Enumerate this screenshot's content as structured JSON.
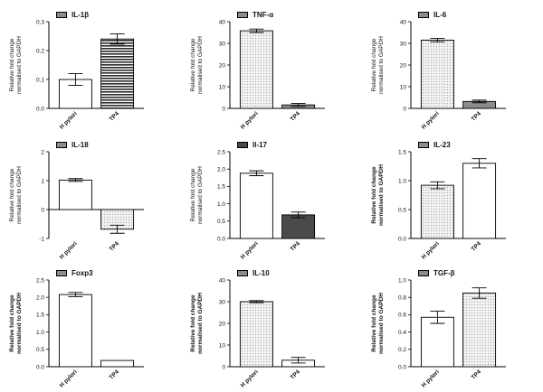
{
  "chart_data": [
    {
      "type": "bar",
      "legend_label": "IL-1β",
      "ylabel_lines": [
        "Relative fold change",
        "normalised to GAPDH"
      ],
      "ylabel_bold": false,
      "categories": [
        "H pylori",
        "TP4"
      ],
      "values": [
        0.1,
        0.24
      ],
      "errors": [
        0.02,
        0.018
      ],
      "ylim": [
        0,
        0.3
      ],
      "yticks": [
        "0.0",
        "0.1",
        "0.2",
        "0.3"
      ],
      "fills": [
        "white",
        "hlines"
      ],
      "legend_fill": "gray"
    },
    {
      "type": "bar",
      "legend_label": "TNF-α",
      "ylabel_lines": [
        "Relative fold change",
        "normalised to GAPDH"
      ],
      "ylabel_bold": false,
      "categories": [
        "H pylori",
        "TP4"
      ],
      "values": [
        35.8,
        1.6
      ],
      "errors": [
        0.8,
        0.7
      ],
      "ylim": [
        0,
        40
      ],
      "yticks": [
        "0",
        "10",
        "20",
        "30",
        "40"
      ],
      "fills": [
        "dots",
        "gray"
      ],
      "legend_fill": "gray"
    },
    {
      "type": "bar",
      "legend_label": "IL-6",
      "ylabel_lines": [
        "Relative fold change",
        "normalised to GAPDH"
      ],
      "ylabel_bold": false,
      "categories": [
        "H pylori",
        "TP4"
      ],
      "values": [
        31.5,
        3.2
      ],
      "errors": [
        0.8,
        0.6
      ],
      "ylim": [
        0,
        40
      ],
      "yticks": [
        "0",
        "10",
        "20",
        "30",
        "40"
      ],
      "fills": [
        "dots",
        "gray"
      ],
      "legend_fill": "gray"
    },
    {
      "type": "bar",
      "legend_label": "IL-18",
      "ylabel_lines": [
        "Relative fold change",
        "normalised to GAPDH"
      ],
      "ylabel_bold": false,
      "categories": [
        "H pylori",
        "TP4"
      ],
      "values": [
        1.02,
        -0.68
      ],
      "errors": [
        0.05,
        0.14
      ],
      "ylim": [
        -1,
        2
      ],
      "yticks": [
        "-1",
        "0",
        "1",
        "2"
      ],
      "fills": [
        "white",
        "dots"
      ],
      "legend_fill": "gray"
    },
    {
      "type": "bar",
      "legend_label": "Il-17",
      "ylabel_lines": [
        "Relative fold change",
        "normalised to GAPDH"
      ],
      "ylabel_bold": false,
      "categories": [
        "H pylori",
        "TP4"
      ],
      "values": [
        1.88,
        0.68
      ],
      "errors": [
        0.07,
        0.08
      ],
      "ylim": [
        0,
        2.5
      ],
      "yticks": [
        "0.0",
        "0.5",
        "1.0",
        "1.5",
        "2.0",
        "2.5"
      ],
      "fills": [
        "white",
        "dark"
      ],
      "legend_fill": "dark"
    },
    {
      "type": "bar",
      "legend_label": "IL-23",
      "ylabel_lines": [
        "Relative fold change",
        "normalised to GAPDH"
      ],
      "ylabel_bold": true,
      "categories": [
        "H pylori",
        "TP4"
      ],
      "values": [
        0.92,
        1.3
      ],
      "errors": [
        0.06,
        0.08
      ],
      "ylim": [
        0,
        1.5
      ],
      "yticks": [
        "0.0",
        "0.5",
        "1.0",
        "1.5"
      ],
      "fills": [
        "dots",
        "white"
      ],
      "legend_fill": "gray"
    },
    {
      "type": "bar",
      "legend_label": "Foxp3",
      "ylabel_lines": [
        "Relative fold change",
        "normalised to GAPDH"
      ],
      "ylabel_bold": true,
      "categories": [
        "H pylori",
        "TP4"
      ],
      "values": [
        2.08,
        0.18
      ],
      "errors": [
        0.06,
        0.0
      ],
      "ylim": [
        0,
        2.5
      ],
      "yticks": [
        "0.0",
        "0.5",
        "1.0",
        "1.5",
        "2.0",
        "2.5"
      ],
      "fills": [
        "white",
        "white"
      ],
      "legend_fill": "gray"
    },
    {
      "type": "bar",
      "legend_label": "IL-10",
      "ylabel_lines": [
        "Relative fold change",
        "normalised to GAPDH"
      ],
      "ylabel_bold": true,
      "categories": [
        "H pylori",
        "TP4"
      ],
      "values": [
        30.0,
        3.0
      ],
      "errors": [
        0.5,
        1.3
      ],
      "ylim": [
        0,
        40
      ],
      "yticks": [
        "0",
        "10",
        "20",
        "30",
        "40"
      ],
      "fills": [
        "dots",
        "white"
      ],
      "legend_fill": "gray"
    },
    {
      "type": "bar",
      "legend_label": "TGF-β",
      "ylabel_lines": [
        "Relative fold change",
        "normalised to GAPDH"
      ],
      "ylabel_bold": true,
      "categories": [
        "H pylori",
        "TP4"
      ],
      "values": [
        0.57,
        0.85
      ],
      "errors": [
        0.07,
        0.06
      ],
      "ylim": [
        0,
        1.0
      ],
      "yticks": [
        "0.0",
        "0.2",
        "0.4",
        "0.6",
        "0.8",
        "1.0"
      ],
      "fills": [
        "white",
        "dots"
      ],
      "legend_fill": "gray"
    }
  ]
}
